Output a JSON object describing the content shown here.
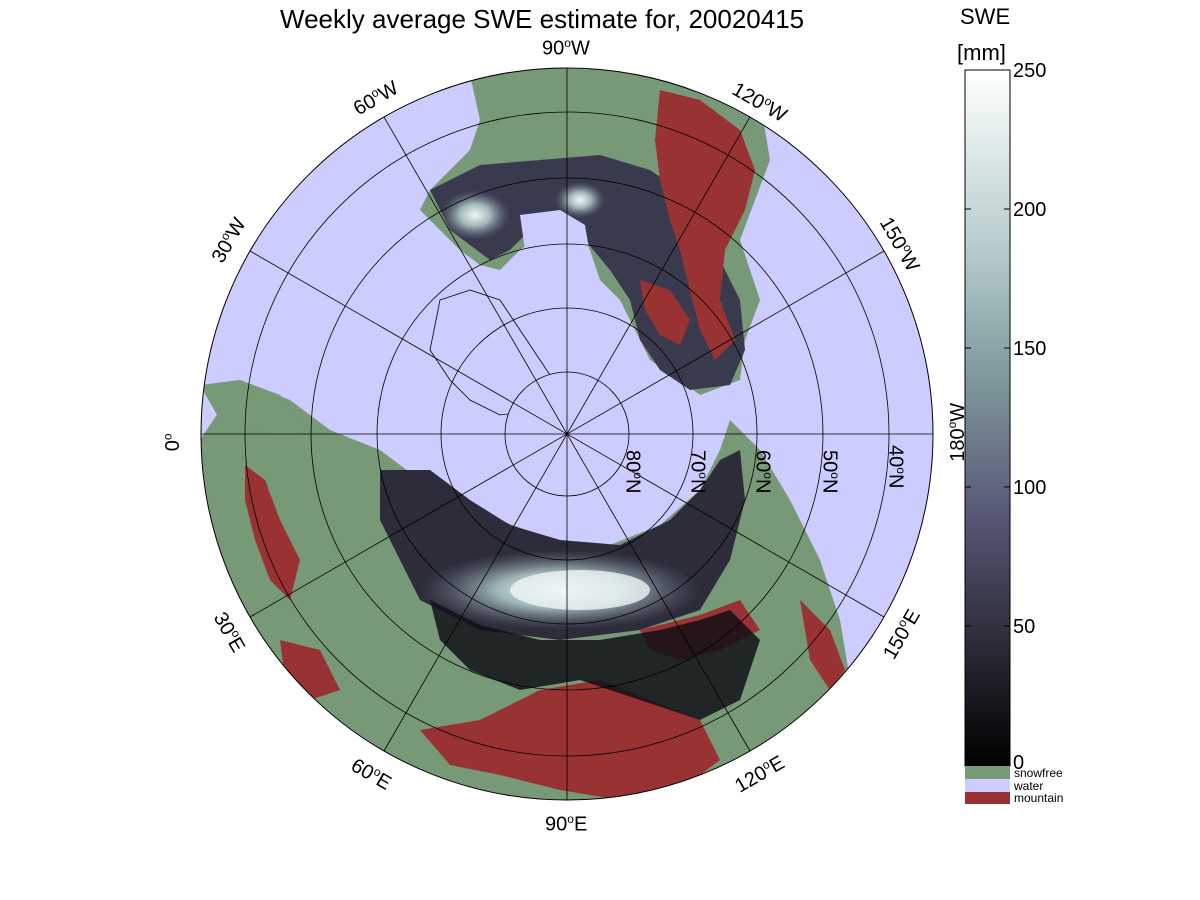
{
  "title": "Weekly average SWE estimate for, 20020415",
  "colorbar": {
    "heading": "SWE",
    "unit": "[mm]",
    "ticks": [
      "250",
      "200",
      "150",
      "100",
      "50",
      "0"
    ],
    "legend": [
      "snowfree",
      "water",
      "mountain"
    ]
  },
  "map": {
    "projection": "north polar stereographic",
    "longitude_labels": {
      "deg_90w": {
        "num": "90",
        "sup": "o",
        "dir": "W"
      },
      "deg_60w": {
        "num": "60",
        "sup": "o",
        "dir": "W"
      },
      "deg_30w": {
        "num": "30",
        "sup": "o",
        "dir": "W"
      },
      "deg_0": {
        "num": "0",
        "sup": "o",
        "dir": ""
      },
      "deg_120w": {
        "num": "120",
        "sup": "o",
        "dir": "W"
      },
      "deg_150w": {
        "num": "150",
        "sup": "o",
        "dir": "W"
      },
      "deg_180w": {
        "num": "180",
        "sup": "o",
        "dir": "W"
      },
      "deg_30e": {
        "num": "30",
        "sup": "o",
        "dir": "E"
      },
      "deg_60e": {
        "num": "60",
        "sup": "o",
        "dir": "E"
      },
      "deg_90e": {
        "num": "90",
        "sup": "o",
        "dir": "E"
      },
      "deg_120e": {
        "num": "120",
        "sup": "o",
        "dir": "E"
      },
      "deg_150e": {
        "num": "150",
        "sup": "o",
        "dir": "E"
      }
    },
    "latitude_labels": {
      "lat80": {
        "num": "80",
        "sup": "o",
        "dir": "N"
      },
      "lat70": {
        "num": "70",
        "sup": "o",
        "dir": "N"
      },
      "lat60": {
        "num": "60",
        "sup": "o",
        "dir": "N"
      },
      "lat50": {
        "num": "50",
        "sup": "o",
        "dir": "N"
      },
      "lat40": {
        "num": "40",
        "sup": "o",
        "dir": "N"
      }
    }
  },
  "colors": {
    "water": "#ccccff",
    "snowfree": "#779977",
    "mountain": "#993333",
    "swe_low": "#000000",
    "swe_high": "#ffffff"
  }
}
